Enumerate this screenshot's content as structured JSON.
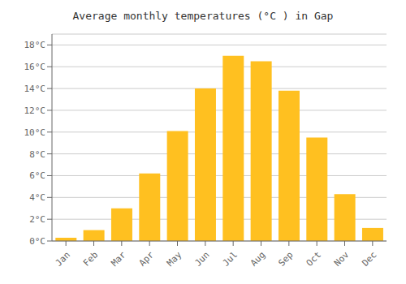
{
  "chart_data": {
    "type": "bar",
    "title": "Average monthly temperatures (°C ) in Gap",
    "categories": [
      "Jan",
      "Feb",
      "Mar",
      "Apr",
      "May",
      "Jun",
      "Jul",
      "Aug",
      "Sep",
      "Oct",
      "Nov",
      "Dec"
    ],
    "values": [
      0.3,
      1.0,
      3.0,
      6.2,
      10.1,
      14.0,
      17.0,
      16.5,
      13.8,
      9.5,
      4.3,
      1.2
    ],
    "color": "#FFC020",
    "ylim": [
      0,
      19
    ],
    "yticks": [
      {
        "value": 0,
        "label": "0°C"
      },
      {
        "value": 2,
        "label": "2°C"
      },
      {
        "value": 4,
        "label": "4°C"
      },
      {
        "value": 6,
        "label": "6°C"
      },
      {
        "value": 8,
        "label": "8°C"
      },
      {
        "value": 10,
        "label": "10°C"
      },
      {
        "value": 12,
        "label": "12°C"
      },
      {
        "value": 14,
        "label": "14°C"
      },
      {
        "value": 16,
        "label": "16°C"
      },
      {
        "value": 18,
        "label": "18°C"
      }
    ],
    "grid": true
  }
}
